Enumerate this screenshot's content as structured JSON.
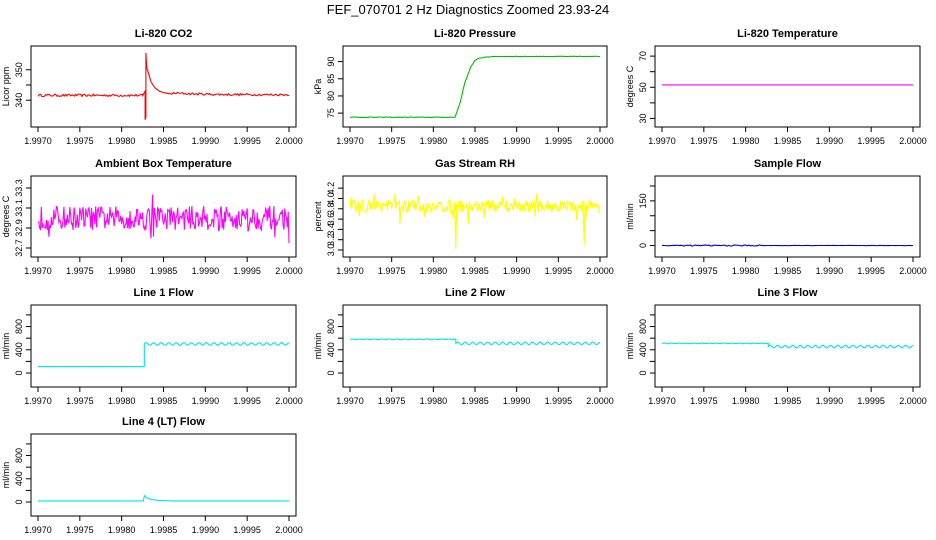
{
  "title": "FEF_070701  2 Hz Diagnostics Zoomed 23.93-24",
  "chart_data": [
    {
      "id": "co2",
      "type": "line",
      "title": "Li-820 CO2",
      "ylabel": "Licor ppm",
      "color": "#ff0000",
      "xlim": [
        1.997,
        2.0
      ],
      "ylim": [
        333.5,
        355.5
      ],
      "yticks": [
        340,
        345,
        350
      ],
      "yticklabels": [
        "340",
        "",
        "350"
      ],
      "x": [
        1.997,
        1.99825,
        1.99828,
        1.99828,
        1.99829,
        1.99829,
        1.9983,
        1.99832,
        1.99835,
        1.9984,
        1.99845,
        1.9985,
        1.9986,
        2.0
      ],
      "y": [
        341.5,
        341.5,
        343,
        333.6,
        334.5,
        355.5,
        350.5,
        349,
        346,
        344,
        343,
        342.5,
        342,
        342
      ]
    },
    {
      "id": "pressure",
      "type": "line",
      "title": "Li-820 Pressure",
      "ylabel": "kPa",
      "color": "#00bb00",
      "xlim": [
        1.997,
        2.0
      ],
      "ylim": [
        73,
        92.5
      ],
      "yticks": [
        75,
        80,
        85,
        90
      ],
      "yticklabels": [
        "75",
        "80",
        "85",
        "90"
      ],
      "x": [
        1.997,
        1.99826,
        1.99832,
        1.99838,
        1.99845,
        1.9985,
        1.99855,
        1.99865,
        1.9988,
        2.0
      ],
      "y": [
        73.8,
        73.8,
        78,
        84,
        88.5,
        90.3,
        91,
        91.4,
        91.5,
        91.5
      ]
    },
    {
      "id": "temp",
      "type": "line",
      "title": "Li-820 Temperature",
      "ylabel": "degrees C",
      "color": "#ff00ff",
      "xlim": [
        1.997,
        2.0
      ],
      "ylim": [
        29,
        72
      ],
      "yticks": [
        30,
        40,
        50,
        60,
        70
      ],
      "yticklabels": [
        "30",
        "",
        "50",
        "",
        "70"
      ],
      "x": [
        1.997,
        2.0
      ],
      "y": [
        51.5,
        51.5
      ]
    },
    {
      "id": "boxtemp",
      "type": "line",
      "title": "Ambient Box Temperature",
      "ylabel": "degrees C",
      "color": "#ff00ff",
      "xlim": [
        1.997,
        2.0
      ],
      "ylim": [
        32.68,
        33.35
      ],
      "yticks": [
        32.7,
        32.9,
        33.1,
        33.3
      ],
      "yticklabels": [
        "32.7",
        "32.9",
        "33.1",
        "33.3"
      ],
      "noise": {
        "base": 33.0,
        "amp": 0.12,
        "n": 300,
        "min": 32.7,
        "max": 33.34
      }
    },
    {
      "id": "rh",
      "type": "line",
      "title": "Gas Stream RH",
      "ylabel": "percent",
      "color": "#ffff00",
      "xlim": [
        1.997,
        2.0
      ],
      "ylim": [
        3.0,
        4.3
      ],
      "yticks": [
        3.0,
        3.2,
        3.4,
        3.6,
        3.8,
        4.0,
        4.2
      ],
      "yticklabels": [
        "3.0",
        "3.2",
        "3.4",
        "3.6",
        "3.8",
        "4.0",
        "4.2"
      ],
      "noise": {
        "base": 3.85,
        "amp": 0.12,
        "n": 300,
        "min": 3.02,
        "max": 4.25,
        "dips": [
          [
            1.99827,
            3.02
          ],
          [
            1.99981,
            3.1
          ],
          [
            1.9976,
            3.5
          ],
          [
            1.99842,
            3.5
          ]
        ]
      }
    },
    {
      "id": "sampleflow",
      "type": "line",
      "title": "Sample Flow",
      "ylabel": "ml/min",
      "color": "#0000cc",
      "xlim": [
        1.997,
        2.0
      ],
      "ylim": [
        -15,
        210
      ],
      "yticks": [
        0,
        50,
        100,
        150,
        200
      ],
      "yticklabels": [
        "0",
        "",
        "",
        "150",
        ""
      ],
      "x": [
        1.997,
        2.0
      ],
      "y": [
        0,
        0
      ]
    },
    {
      "id": "line1",
      "type": "line",
      "title": "Line 1 Flow",
      "ylabel": "ml/min",
      "color": "#00e5e5",
      "xlim": [
        1.997,
        2.0
      ],
      "ylim": [
        -120,
        1050
      ],
      "yticks": [
        0,
        200,
        400,
        600,
        800,
        1000
      ],
      "yticklabels": [
        "0",
        "",
        "400",
        "",
        "800",
        ""
      ],
      "segments": [
        {
          "x0": 1.997,
          "x1": 1.99827,
          "level": 110,
          "osc": 0
        },
        {
          "x0": 1.99827,
          "x1": 2.0,
          "level": 500,
          "osc": 22
        }
      ]
    },
    {
      "id": "line2",
      "type": "line",
      "title": "Line 2 Flow",
      "ylabel": "ml/min",
      "color": "#00e5e5",
      "xlim": [
        1.997,
        2.0
      ],
      "ylim": [
        -120,
        1050
      ],
      "yticks": [
        0,
        200,
        400,
        600,
        800,
        1000
      ],
      "yticklabels": [
        "0",
        "",
        "400",
        "",
        "800",
        ""
      ],
      "segments": [
        {
          "x0": 1.997,
          "x1": 1.99827,
          "level": 580,
          "osc": 5
        },
        {
          "x0": 1.99827,
          "x1": 2.0,
          "level": 510,
          "osc": 22
        }
      ]
    },
    {
      "id": "line3",
      "type": "line",
      "title": "Line 3 Flow",
      "ylabel": "ml/min",
      "color": "#00e5e5",
      "xlim": [
        1.997,
        2.0
      ],
      "ylim": [
        -120,
        1050
      ],
      "yticks": [
        0,
        200,
        400,
        600,
        800,
        1000
      ],
      "yticklabels": [
        "0",
        "",
        "400",
        "",
        "800",
        ""
      ],
      "segments": [
        {
          "x0": 1.997,
          "x1": 1.99827,
          "level": 510,
          "osc": 5
        },
        {
          "x0": 1.99827,
          "x1": 2.0,
          "level": 455,
          "osc": 22
        }
      ]
    },
    {
      "id": "line4",
      "type": "line",
      "title": "Line 4 (LT) Flow",
      "ylabel": "ml/min",
      "color": "#00e5e5",
      "xlim": [
        1.997,
        2.0
      ],
      "ylim": [
        -120,
        1050
      ],
      "yticks": [
        0,
        200,
        400,
        600,
        800,
        1000
      ],
      "yticklabels": [
        "0",
        "",
        "400",
        "",
        "800",
        ""
      ],
      "x": [
        1.997,
        1.99826,
        1.99827,
        1.9983,
        1.99835,
        1.99845,
        1.9986,
        2.0
      ],
      "y": [
        20,
        20,
        110,
        70,
        45,
        25,
        20,
        20
      ]
    }
  ],
  "xticks": [
    1.997,
    1.9975,
    1.998,
    1.9985,
    1.999,
    1.9995,
    2.0
  ],
  "xticklabels": [
    "1.9970",
    "1.9975",
    "1.9980",
    "1.9985",
    "1.9990",
    "1.9995",
    "2.0000"
  ]
}
